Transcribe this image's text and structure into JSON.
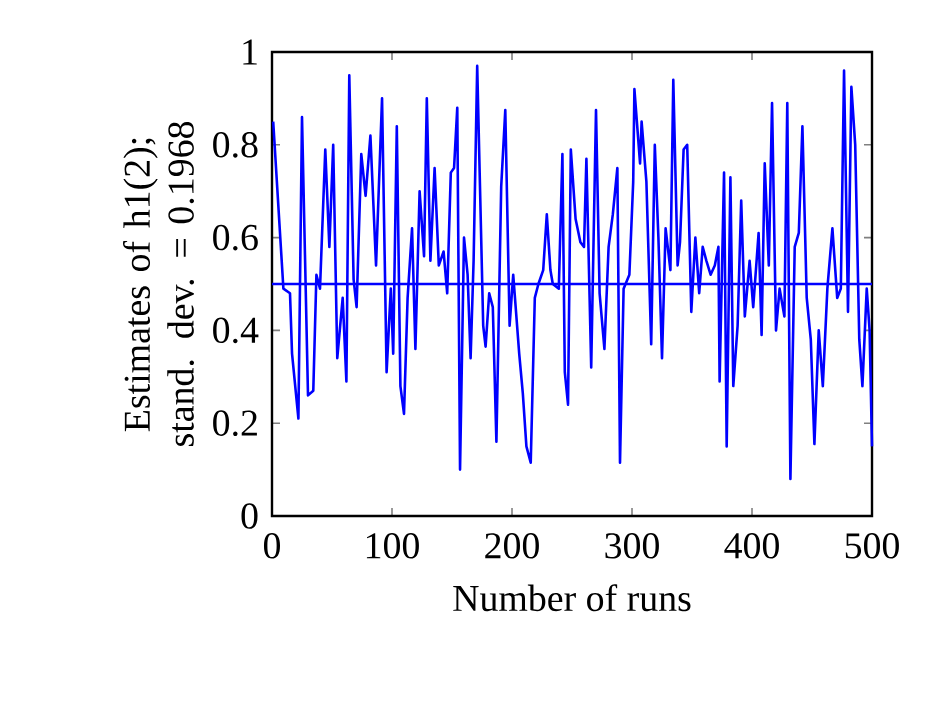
{
  "chart_data": {
    "type": "line",
    "xlabel": "Number of runs",
    "ylabel": "Estimates of h1(2); stand. dev. = 0.1968",
    "x": [
      1,
      9.5,
      15,
      16.7,
      22,
      25,
      30,
      34.4,
      37,
      40,
      44.4,
      47.8,
      51,
      54.4,
      58.9,
      62,
      64.4,
      68,
      70.5,
      74.4,
      78,
      82,
      86.7,
      91.7,
      95.5,
      99,
      101,
      104,
      107,
      110,
      113,
      116.7,
      119.5,
      123,
      126.7,
      129,
      132,
      135.5,
      139,
      143,
      146,
      149,
      151.7,
      154.4,
      156.7,
      160,
      163,
      165.5,
      168,
      171,
      176,
      178,
      181,
      184,
      187,
      191,
      194.4,
      198,
      201,
      206,
      209,
      212,
      215.6,
      219,
      222,
      226,
      229,
      232,
      234,
      239,
      242,
      244,
      246.7,
      249,
      253,
      257,
      260,
      262,
      266,
      270,
      273,
      277,
      280.5,
      284,
      287.8,
      290,
      293,
      297.8,
      301,
      302,
      306.7,
      308,
      312,
      316,
      319,
      322,
      325,
      328,
      332,
      334.4,
      338,
      340,
      343,
      346,
      349.4,
      352.8,
      356,
      358.9,
      362,
      365.5,
      369,
      372,
      373,
      376.7,
      378.9,
      382,
      384.4,
      388,
      391,
      394,
      398,
      401,
      405.5,
      408,
      410.6,
      414,
      416.7,
      420,
      423,
      427,
      429.4,
      432,
      435.6,
      439,
      442,
      445.6,
      449,
      452,
      455.6,
      459,
      462.8,
      467,
      471,
      474,
      476.7,
      480,
      482.8,
      486,
      489.4,
      492,
      495.6,
      498,
      500
    ],
    "series": [
      {
        "color": "#0000ff",
        "values": [
          0.85,
          0.49,
          0.48,
          0.35,
          0.21,
          0.86,
          0.26,
          0.27,
          0.52,
          0.49,
          0.79,
          0.58,
          0.8,
          0.34,
          0.47,
          0.29,
          0.95,
          0.51,
          0.45,
          0.78,
          0.69,
          0.82,
          0.54,
          0.9,
          0.31,
          0.49,
          0.35,
          0.84,
          0.28,
          0.22,
          0.47,
          0.62,
          0.36,
          0.7,
          0.56,
          0.9,
          0.55,
          0.75,
          0.54,
          0.57,
          0.48,
          0.74,
          0.75,
          0.88,
          0.1,
          0.6,
          0.52,
          0.34,
          0.55,
          0.97,
          0.41,
          0.365,
          0.48,
          0.45,
          0.16,
          0.71,
          0.875,
          0.41,
          0.52,
          0.35,
          0.265,
          0.15,
          0.115,
          0.47,
          0.5,
          0.53,
          0.65,
          0.53,
          0.5,
          0.49,
          0.78,
          0.31,
          0.24,
          0.79,
          0.64,
          0.59,
          0.58,
          0.77,
          0.32,
          0.875,
          0.48,
          0.36,
          0.58,
          0.65,
          0.75,
          0.115,
          0.49,
          0.52,
          0.72,
          0.92,
          0.76,
          0.85,
          0.72,
          0.37,
          0.8,
          0.6,
          0.34,
          0.62,
          0.53,
          0.94,
          0.54,
          0.59,
          0.79,
          0.8,
          0.44,
          0.6,
          0.48,
          0.58,
          0.55,
          0.52,
          0.54,
          0.58,
          0.29,
          0.74,
          0.15,
          0.73,
          0.28,
          0.41,
          0.68,
          0.43,
          0.55,
          0.45,
          0.61,
          0.39,
          0.76,
          0.54,
          0.89,
          0.4,
          0.49,
          0.43,
          0.89,
          0.08,
          0.58,
          0.61,
          0.84,
          0.47,
          0.38,
          0.155,
          0.4,
          0.28,
          0.49,
          0.62,
          0.47,
          0.49,
          0.96,
          0.44,
          0.925,
          0.8,
          0.38,
          0.28,
          0.49,
          0.4,
          0.15
        ]
      }
    ],
    "xlim": [
      0,
      500
    ],
    "ylim": [
      0,
      1
    ],
    "xticks": [
      0,
      100,
      200,
      300,
      400,
      500
    ],
    "yticks": [
      0,
      0.2,
      0.4,
      0.6,
      0.8,
      1
    ],
    "ref_lines": [
      {
        "axis": "y",
        "value": 0.5,
        "color": "#0000ff"
      }
    ],
    "grid": false,
    "marker": "none",
    "line_style": "solid"
  }
}
